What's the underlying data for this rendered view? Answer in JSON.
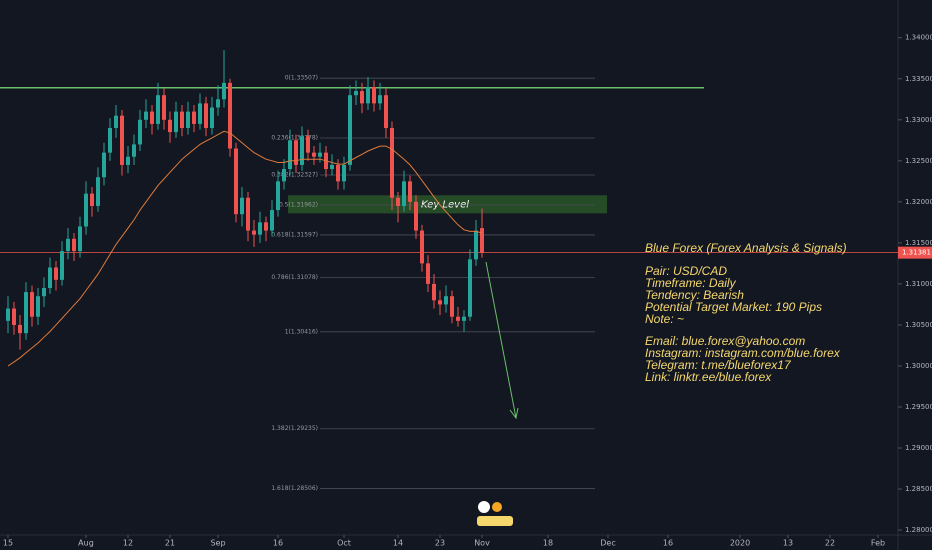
{
  "chart_data": {
    "type": "candlestick",
    "candles": [
      [
        1.3055,
        1.3085,
        1.304,
        1.307
      ],
      [
        1.307,
        1.3078,
        1.3038,
        1.305
      ],
      [
        1.305,
        1.3062,
        1.302,
        1.304
      ],
      [
        1.304,
        1.3102,
        1.3032,
        1.309
      ],
      [
        1.309,
        1.3098,
        1.3048,
        1.306
      ],
      [
        1.306,
        1.3095,
        1.305,
        1.3085
      ],
      [
        1.3085,
        1.3108,
        1.3072,
        1.3095
      ],
      [
        1.3095,
        1.3132,
        1.3088,
        1.312
      ],
      [
        1.312,
        1.3128,
        1.3092,
        1.3105
      ],
      [
        1.3105,
        1.3152,
        1.3098,
        1.314
      ],
      [
        1.314,
        1.3168,
        1.313,
        1.3155
      ],
      [
        1.3155,
        1.3162,
        1.3128,
        1.314
      ],
      [
        1.314,
        1.3182,
        1.3132,
        1.317
      ],
      [
        1.317,
        1.3225,
        1.316,
        1.321
      ],
      [
        1.321,
        1.3218,
        1.3182,
        1.3195
      ],
      [
        1.3195,
        1.3242,
        1.3188,
        1.323
      ],
      [
        1.323,
        1.3272,
        1.322,
        1.326
      ],
      [
        1.326,
        1.3302,
        1.325,
        1.329
      ],
      [
        1.329,
        1.3318,
        1.3278,
        1.3305
      ],
      [
        1.3305,
        1.3312,
        1.3232,
        1.3245
      ],
      [
        1.3245,
        1.3268,
        1.3235,
        1.3255
      ],
      [
        1.3255,
        1.3282,
        1.3245,
        1.327
      ],
      [
        1.327,
        1.3312,
        1.3262,
        1.33
      ],
      [
        1.33,
        1.3325,
        1.329,
        1.331
      ],
      [
        1.331,
        1.3318,
        1.3282,
        1.3295
      ],
      [
        1.3295,
        1.3345,
        1.3288,
        1.333
      ],
      [
        1.333,
        1.3338,
        1.3288,
        1.33
      ],
      [
        1.33,
        1.331,
        1.3272,
        1.3285
      ],
      [
        1.3285,
        1.3322,
        1.3278,
        1.331
      ],
      [
        1.331,
        1.3318,
        1.328,
        1.329
      ],
      [
        1.329,
        1.3322,
        1.3282,
        1.331
      ],
      [
        1.331,
        1.3318,
        1.3285,
        1.3295
      ],
      [
        1.3295,
        1.3332,
        1.3288,
        1.332
      ],
      [
        1.332,
        1.3328,
        1.328,
        1.329
      ],
      [
        1.329,
        1.3328,
        1.3282,
        1.3315
      ],
      [
        1.3315,
        1.3342,
        1.3305,
        1.3325
      ],
      [
        1.3325,
        1.3385,
        1.3315,
        1.3345
      ],
      [
        1.3345,
        1.335,
        1.3255,
        1.3265
      ],
      [
        1.3265,
        1.3272,
        1.3175,
        1.3185
      ],
      [
        1.3185,
        1.3218,
        1.317,
        1.3205
      ],
      [
        1.3205,
        1.3212,
        1.3152,
        1.3165
      ],
      [
        1.3165,
        1.3178,
        1.3145,
        1.316
      ],
      [
        1.316,
        1.3188,
        1.315,
        1.3175
      ],
      [
        1.3175,
        1.3182,
        1.3152,
        1.3165
      ],
      [
        1.3165,
        1.3202,
        1.3158,
        1.319
      ],
      [
        1.319,
        1.3238,
        1.3182,
        1.3225
      ],
      [
        1.3225,
        1.3252,
        1.3215,
        1.324
      ],
      [
        1.324,
        1.3288,
        1.3232,
        1.3275
      ],
      [
        1.3275,
        1.3282,
        1.3235,
        1.3245
      ],
      [
        1.3245,
        1.3292,
        1.3238,
        1.328
      ],
      [
        1.328,
        1.3288,
        1.325,
        1.326
      ],
      [
        1.326,
        1.3268,
        1.3245,
        1.3255
      ],
      [
        1.3255,
        1.3272,
        1.3248,
        1.326
      ],
      [
        1.326,
        1.3268,
        1.323,
        1.324
      ],
      [
        1.324,
        1.3258,
        1.3232,
        1.3245
      ],
      [
        1.3245,
        1.3252,
        1.3215,
        1.3225
      ],
      [
        1.3225,
        1.3255,
        1.3215,
        1.3245
      ],
      [
        1.3245,
        1.3342,
        1.3238,
        1.333
      ],
      [
        1.333,
        1.3348,
        1.3318,
        1.3335
      ],
      [
        1.3335,
        1.3345,
        1.3308,
        1.332
      ],
      [
        1.332,
        1.3352,
        1.3312,
        1.334
      ],
      [
        1.334,
        1.3348,
        1.331,
        1.332
      ],
      [
        1.332,
        1.3345,
        1.3312,
        1.333
      ],
      [
        1.333,
        1.3338,
        1.3278,
        1.329
      ],
      [
        1.329,
        1.3298,
        1.319,
        1.3205
      ],
      [
        1.3205,
        1.3212,
        1.3175,
        1.3195
      ],
      [
        1.3195,
        1.3238,
        1.3188,
        1.3225
      ],
      [
        1.3225,
        1.3232,
        1.319,
        1.32
      ],
      [
        1.32,
        1.3208,
        1.3155,
        1.3165
      ],
      [
        1.3165,
        1.3172,
        1.3115,
        1.3125
      ],
      [
        1.3125,
        1.3135,
        1.309,
        1.31
      ],
      [
        1.31,
        1.3112,
        1.307,
        1.308
      ],
      [
        1.308,
        1.3092,
        1.3062,
        1.3075
      ],
      [
        1.3075,
        1.3098,
        1.3065,
        1.3085
      ],
      [
        1.3085,
        1.3092,
        1.3052,
        1.306
      ],
      [
        1.306,
        1.3072,
        1.3048,
        1.3055
      ],
      [
        1.3055,
        1.3068,
        1.3042,
        1.306
      ],
      [
        1.306,
        1.3142,
        1.3055,
        1.313
      ],
      [
        1.313,
        1.3178,
        1.3122,
        1.3165
      ],
      [
        1.3168,
        1.3192,
        1.3132,
        1.3138
      ]
    ],
    "up_color": "#26a69a",
    "down_color": "#ef5350",
    "moving_average": {
      "color": "#e07b39",
      "values": [
        1.3,
        1.3005,
        1.301,
        1.3016,
        1.3022,
        1.3028,
        1.3035,
        1.3042,
        1.305,
        1.3058,
        1.3066,
        1.3074,
        1.3082,
        1.3092,
        1.3102,
        1.3112,
        1.3124,
        1.3136,
        1.3148,
        1.3158,
        1.3168,
        1.3178,
        1.319,
        1.32,
        1.321,
        1.322,
        1.3228,
        1.3236,
        1.3244,
        1.3252,
        1.3258,
        1.3264,
        1.327,
        1.3274,
        1.3278,
        1.3282,
        1.3286,
        1.3284,
        1.3278,
        1.3272,
        1.3266,
        1.326,
        1.3256,
        1.3252,
        1.325,
        1.3248,
        1.3248,
        1.325,
        1.325,
        1.3252,
        1.3252,
        1.3252,
        1.3252,
        1.325,
        1.3248,
        1.3246,
        1.3246,
        1.325,
        1.3254,
        1.3258,
        1.3262,
        1.3265,
        1.3268,
        1.3268,
        1.3264,
        1.3258,
        1.3252,
        1.3245,
        1.3236,
        1.3226,
        1.3216,
        1.3206,
        1.3196,
        1.3188,
        1.318,
        1.3172,
        1.3166,
        1.3164,
        1.3164,
        1.3162
      ]
    },
    "xlim": [
      -1.333,
      148.333
    ],
    "xticks": [
      {
        "value": 0,
        "label": "15"
      },
      {
        "value": 13,
        "label": "Aug"
      },
      {
        "value": 20,
        "label": "12"
      },
      {
        "value": 27,
        "label": "21"
      },
      {
        "value": 35,
        "label": "Sep"
      },
      {
        "value": 45,
        "label": "16"
      },
      {
        "value": 56,
        "label": "Oct"
      },
      {
        "value": 65,
        "label": "14"
      },
      {
        "value": 72,
        "label": "23"
      },
      {
        "value": 79,
        "label": "Nov"
      },
      {
        "value": 90,
        "label": "18"
      },
      {
        "value": 100,
        "label": "Dec"
      },
      {
        "value": 110,
        "label": "16"
      },
      {
        "value": 122,
        "label": "2020"
      },
      {
        "value": 130,
        "label": "13"
      },
      {
        "value": 137,
        "label": "22"
      },
      {
        "value": 145,
        "label": "Feb"
      }
    ],
    "ylim": [
      1.2794,
      1.3446
    ],
    "yticks": [
      {
        "value": 1.28,
        "label": "1.28000"
      },
      {
        "value": 1.285,
        "label": "1.28500"
      },
      {
        "value": 1.29,
        "label": "1.29000"
      },
      {
        "value": 1.295,
        "label": "1.29500"
      },
      {
        "value": 1.3,
        "label": "1.30000"
      },
      {
        "value": 1.305,
        "label": "1.30500"
      },
      {
        "value": 1.31,
        "label": "1.31000"
      },
      {
        "value": 1.315,
        "label": "1.31500"
      },
      {
        "value": 1.32,
        "label": "1.32000"
      },
      {
        "value": 1.325,
        "label": "1.32500"
      },
      {
        "value": 1.33,
        "label": "1.33000"
      },
      {
        "value": 1.335,
        "label": "1.33500"
      },
      {
        "value": 1.34,
        "label": "1.34000"
      }
    ],
    "resistance": {
      "value": 1.3339,
      "color": "#6abf69"
    },
    "last_price": {
      "value": 1.31381,
      "label": "1.31381",
      "color": "#ef5350"
    },
    "key_level": {
      "label": "Key Level",
      "low": 1.3186,
      "high": 1.3208,
      "color": "#2e5e2a"
    },
    "fib_levels": [
      {
        "value": 1.33507,
        "label": "0(1.33507)"
      },
      {
        "value": 1.32778,
        "label": "0.236(1.32778)"
      },
      {
        "value": 1.32327,
        "label": "0.382(1.32327)"
      },
      {
        "value": 1.31962,
        "label": "0.5(1.31962)"
      },
      {
        "value": 1.31597,
        "label": "0.618(1.31597)"
      },
      {
        "value": 1.31078,
        "label": "0.786(1.31078)"
      },
      {
        "value": 1.30416,
        "label": "1(1.30416)"
      },
      {
        "value": 1.29235,
        "label": "1.382(1.29235)"
      },
      {
        "value": 1.28506,
        "label": "1.618(1.28506)"
      }
    ],
    "annotation_lines": [
      "Blue Forex (Forex Analysis & Signals)",
      "Pair: USD/CAD",
      "Timeframe: Daily",
      "Tendency: Bearish",
      "Potential Target Market: 190 Pips",
      "Note: ~",
      "Email: blue.forex@yahoo.com",
      "Instagram: instagram.com/blue.forex",
      "Telegram: t.me/blueforex17",
      "Link: linktr.ee/blue.forex"
    ]
  }
}
